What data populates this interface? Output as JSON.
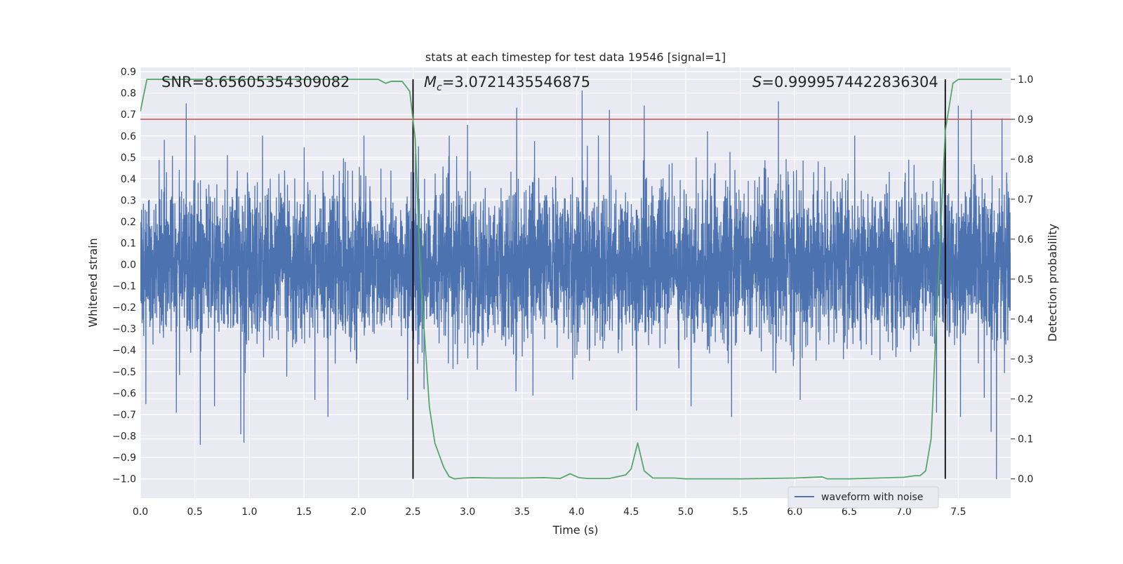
{
  "chart_data": {
    "type": "line",
    "title": "stats at each timestep for test data 19546 [signal=1]",
    "xlabel": "Time (s)",
    "ylabel": "Whitened strain",
    "y2label": "Detection probability",
    "xlim": [
      0.0,
      7.98
    ],
    "ylim": [
      -1.09,
      0.92
    ],
    "y2lim": [
      -0.048,
      1.03
    ],
    "xticks": [
      "0.0",
      "0.5",
      "1.0",
      "1.5",
      "2.0",
      "2.5",
      "3.0",
      "3.5",
      "4.0",
      "4.5",
      "5.0",
      "5.5",
      "6.0",
      "6.5",
      "7.0",
      "7.5"
    ],
    "yticks": [
      "−1.0",
      "−0.9",
      "−0.8",
      "−0.7",
      "−0.6",
      "−0.5",
      "−0.4",
      "−0.3",
      "−0.2",
      "−0.1",
      "0.0",
      "0.1",
      "0.2",
      "0.3",
      "0.4",
      "0.5",
      "0.6",
      "0.7",
      "0.8",
      "0.9"
    ],
    "y2ticks": [
      "0.0",
      "0.1",
      "0.2",
      "0.3",
      "0.4",
      "0.5",
      "0.6",
      "0.7",
      "0.8",
      "0.9",
      "1.0"
    ],
    "grid": true,
    "legend_position": "lower-right",
    "annotations": {
      "snr": "SNR=8.65605354309082",
      "mc_symbol": "M",
      "mc_sub": "c",
      "mc_value": "=3.0721435546875",
      "s_symbol": "S",
      "s_value": "=0.9999574422836304"
    },
    "threshold": {
      "axis": "y2",
      "value": 0.9
    },
    "event_markers": {
      "x": [
        2.5,
        7.38
      ],
      "y2_range": [
        0.0,
        1.0
      ]
    },
    "series": [
      {
        "name": "waveform with noise",
        "axis": "y",
        "style": "noise-band",
        "x_range": [
          0.0,
          7.98
        ],
        "typical_amplitude": 0.28,
        "peaks": [
          [
            0.22,
            0.58
          ],
          [
            0.33,
            0.62
          ],
          [
            0.42,
            0.75
          ],
          [
            0.5,
            0.6
          ],
          [
            1.12,
            0.6
          ],
          [
            1.72,
            0.61
          ],
          [
            2.05,
            0.6
          ],
          [
            2.55,
            0.55
          ],
          [
            2.6,
            0.82
          ],
          [
            3.0,
            0.65
          ],
          [
            3.45,
            0.73
          ],
          [
            4.05,
            0.81
          ],
          [
            4.3,
            0.72
          ],
          [
            4.62,
            0.74
          ],
          [
            5.2,
            0.62
          ],
          [
            5.85,
            0.76
          ],
          [
            6.55,
            0.6
          ],
          [
            7.3,
            0.7
          ],
          [
            7.5,
            0.74
          ],
          [
            7.62,
            0.72
          ],
          [
            7.9,
            0.68
          ]
        ],
        "troughs": [
          [
            0.05,
            -0.65
          ],
          [
            0.33,
            -0.69
          ],
          [
            0.55,
            -0.84
          ],
          [
            0.68,
            -0.66
          ],
          [
            0.92,
            -0.79
          ],
          [
            0.95,
            -0.83
          ],
          [
            1.6,
            -0.63
          ],
          [
            1.72,
            -0.71
          ],
          [
            2.45,
            -0.63
          ],
          [
            2.6,
            -0.58
          ],
          [
            3.6,
            -0.61
          ],
          [
            4.55,
            -0.68
          ],
          [
            5.05,
            -0.66
          ],
          [
            5.42,
            -0.71
          ],
          [
            6.05,
            -0.63
          ],
          [
            7.3,
            -0.69
          ],
          [
            7.52,
            -0.71
          ],
          [
            7.8,
            -0.78
          ],
          [
            7.85,
            -1.0
          ]
        ]
      },
      {
        "name": "detection probability",
        "axis": "y2",
        "color": "#55a868",
        "x": [
          0.0,
          0.06,
          0.4,
          1.0,
          1.5,
          2.0,
          2.18,
          2.25,
          2.3,
          2.4,
          2.47,
          2.52,
          2.57,
          2.65,
          2.7,
          2.78,
          2.83,
          2.88,
          2.96,
          3.05,
          3.25,
          3.5,
          3.7,
          3.85,
          3.94,
          4.02,
          4.1,
          4.3,
          4.45,
          4.5,
          4.56,
          4.62,
          4.7,
          4.9,
          5.0,
          5.5,
          6.0,
          6.25,
          6.3,
          6.5,
          7.0,
          7.1,
          7.15,
          7.2,
          7.25,
          7.3,
          7.38,
          7.45,
          7.5,
          7.6,
          7.9
        ],
        "values": [
          0.92,
          1.0,
          1.0,
          1.0,
          1.0,
          1.0,
          1.0,
          0.99,
          0.995,
          0.995,
          0.97,
          0.85,
          0.5,
          0.18,
          0.09,
          0.03,
          0.006,
          0.0,
          0.002,
          0.003,
          0.002,
          0.002,
          0.003,
          0.001,
          0.013,
          0.003,
          0.001,
          0.001,
          0.01,
          0.025,
          0.09,
          0.02,
          0.002,
          0.002,
          0.0,
          0.0,
          0.002,
          0.005,
          0.0,
          0.0,
          0.004,
          0.008,
          0.008,
          0.02,
          0.1,
          0.4,
          0.87,
          0.99,
          1.0,
          1.0,
          1.0
        ]
      }
    ]
  }
}
